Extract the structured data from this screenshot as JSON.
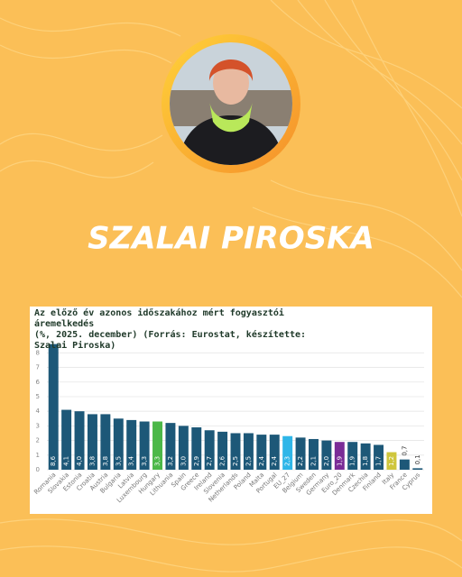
{
  "header": {
    "name": "SZALAI PIROSKA"
  },
  "chart_data": {
    "type": "bar",
    "title": "Az előző év azonos időszakához mért fogyasztói áremelkedés",
    "subtitle": "(%, 2025. december) (Forrás: Eurostat, készítette: Szalai Piroska)",
    "categories": [
      "Romania",
      "Slovakia",
      "Estonia",
      "Croatia",
      "Austria",
      "Bulgaria",
      "Latvia",
      "Luxembourg",
      "Hungary",
      "Lithuania",
      "Spain",
      "Greece",
      "Ireland",
      "Slovenia",
      "Netherlands",
      "Poland",
      "Malta",
      "Portugal",
      "EU_27",
      "Belgium",
      "Sweden",
      "Germany",
      "Euro_20",
      "Denmark",
      "Czechia",
      "Finland",
      "Italy",
      "France",
      "Cyprus"
    ],
    "values": [
      8.6,
      4.1,
      4.0,
      3.8,
      3.8,
      3.5,
      3.4,
      3.3,
      3.3,
      3.2,
      3.0,
      2.9,
      2.7,
      2.6,
      2.5,
      2.5,
      2.4,
      2.4,
      2.3,
      2.2,
      2.1,
      2.0,
      1.9,
      1.9,
      1.8,
      1.7,
      1.2,
      0.7,
      0.1
    ],
    "value_labels": [
      "8,6",
      "4,1",
      "4,0",
      "3,8",
      "3,8",
      "3,5",
      "3,4",
      "3,3",
      "3,3",
      "3,2",
      "3,0",
      "2,9",
      "2,7",
      "2,6",
      "2,5",
      "2,5",
      "2,4",
      "2,4",
      "2,3",
      "2,2",
      "2,1",
      "2,0",
      "1,9",
      "1,9",
      "1,8",
      "1,7",
      "1,2",
      "0,7",
      "0,1"
    ],
    "colors": [
      "#1d5878",
      "#1d5878",
      "#1d5878",
      "#1d5878",
      "#1d5878",
      "#1d5878",
      "#1d5878",
      "#1d5878",
      "#4cb848",
      "#1d5878",
      "#1d5878",
      "#1d5878",
      "#1d5878",
      "#1d5878",
      "#1d5878",
      "#1d5878",
      "#1d5878",
      "#1d5878",
      "#2fb6e8",
      "#1d5878",
      "#1d5878",
      "#1d5878",
      "#7a2c96",
      "#1d5878",
      "#1d5878",
      "#1d5878",
      "#cfc63c",
      "#1d5878",
      "#1d5878"
    ],
    "ylim": [
      0,
      8.7
    ],
    "yticks": [
      0,
      1,
      2,
      3,
      4,
      5,
      6,
      7,
      8
    ],
    "grid": true
  }
}
